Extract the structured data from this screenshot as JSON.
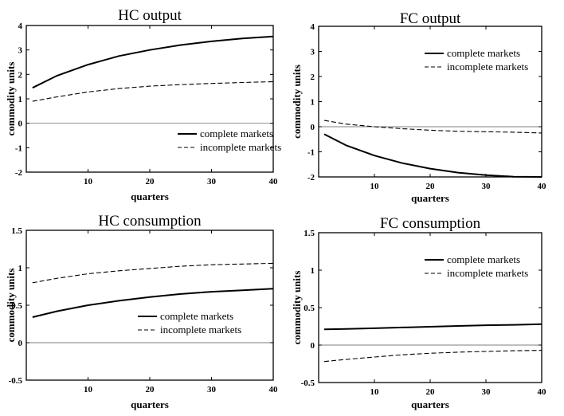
{
  "figure": {
    "charts": [
      {
        "type": "line",
        "title": "HC output",
        "xlabel": "quarters",
        "ylabel": "commodity units",
        "xlim": [
          0,
          40
        ],
        "ylim": [
          -2,
          4
        ],
        "xticks": [
          10,
          20,
          30,
          40
        ],
        "yticks": [
          -2,
          -1,
          0,
          1,
          2,
          3,
          4
        ],
        "zero_line": true,
        "legend_position": "lower-right",
        "series": [
          {
            "name": "complete markets",
            "style": "solid",
            "x": [
              1,
              5,
              10,
              15,
              20,
              25,
              30,
              35,
              40
            ],
            "y": [
              1.45,
              1.95,
              2.4,
              2.75,
              3.0,
              3.2,
              3.35,
              3.47,
              3.55
            ]
          },
          {
            "name": "incomplete markets",
            "style": "dashed",
            "x": [
              1,
              5,
              10,
              15,
              20,
              25,
              30,
              35,
              40
            ],
            "y": [
              0.9,
              1.08,
              1.28,
              1.42,
              1.52,
              1.58,
              1.63,
              1.67,
              1.7
            ]
          }
        ]
      },
      {
        "type": "line",
        "title": "FC output",
        "xlabel": "quarters",
        "ylabel": "commodity units",
        "xlim": [
          0,
          40
        ],
        "ylim": [
          -2,
          4
        ],
        "xticks": [
          10,
          20,
          30,
          40
        ],
        "yticks": [
          -2,
          -1,
          0,
          1,
          2,
          3,
          4
        ],
        "zero_line": true,
        "legend_position": "upper-right",
        "series": [
          {
            "name": "complete markets",
            "style": "solid",
            "x": [
              1,
              5,
              10,
              15,
              20,
              25,
              30,
              35,
              40
            ],
            "y": [
              -0.3,
              -0.75,
              -1.15,
              -1.45,
              -1.67,
              -1.83,
              -1.93,
              -1.99,
              -2.0
            ]
          },
          {
            "name": "incomplete markets",
            "style": "dashed",
            "x": [
              1,
              5,
              10,
              15,
              20,
              25,
              30,
              35,
              40
            ],
            "y": [
              0.25,
              0.1,
              0.0,
              -0.08,
              -0.14,
              -0.18,
              -0.2,
              -0.22,
              -0.25
            ]
          }
        ]
      },
      {
        "type": "line",
        "title": "HC consumption",
        "xlabel": "quarters",
        "ylabel": "commodity units",
        "xlim": [
          0,
          40
        ],
        "ylim": [
          -0.5,
          1.5
        ],
        "xticks": [
          10,
          20,
          30,
          40
        ],
        "yticks": [
          -0.5,
          0,
          0.5,
          1,
          1.5
        ],
        "zero_line": true,
        "legend_position": "lower-right",
        "series": [
          {
            "name": "complete markets",
            "style": "solid",
            "x": [
              1,
              5,
              10,
              15,
              20,
              25,
              30,
              35,
              40
            ],
            "y": [
              0.34,
              0.42,
              0.5,
              0.56,
              0.61,
              0.65,
              0.68,
              0.7,
              0.72
            ]
          },
          {
            "name": "incomplete markets",
            "style": "dashed",
            "x": [
              1,
              5,
              10,
              15,
              20,
              25,
              30,
              35,
              40
            ],
            "y": [
              0.8,
              0.86,
              0.92,
              0.96,
              0.99,
              1.02,
              1.04,
              1.05,
              1.06
            ]
          }
        ]
      },
      {
        "type": "line",
        "title": "FC consumption",
        "xlabel": "quarters",
        "ylabel": "commodity units",
        "xlim": [
          0,
          40
        ],
        "ylim": [
          -0.5,
          1.5
        ],
        "xticks": [
          10,
          20,
          30,
          40
        ],
        "yticks": [
          -0.5,
          0,
          0.5,
          1,
          1.5
        ],
        "zero_line": true,
        "legend_position": "upper-right",
        "series": [
          {
            "name": "complete markets",
            "style": "solid",
            "x": [
              1,
              5,
              10,
              15,
              20,
              25,
              30,
              35,
              40
            ],
            "y": [
              0.21,
              0.215,
              0.225,
              0.235,
              0.245,
              0.255,
              0.265,
              0.27,
              0.28
            ]
          },
          {
            "name": "incomplete markets",
            "style": "dashed",
            "x": [
              1,
              5,
              10,
              15,
              20,
              25,
              30,
              35,
              40
            ],
            "y": [
              -0.22,
              -0.19,
              -0.16,
              -0.13,
              -0.11,
              -0.095,
              -0.085,
              -0.075,
              -0.07
            ]
          }
        ]
      }
    ]
  }
}
